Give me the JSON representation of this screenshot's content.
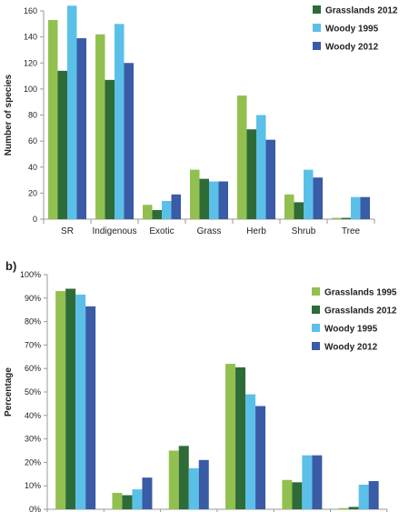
{
  "colors": {
    "grasslands_1995": "#92c050",
    "grasslands_2012": "#2e6b37",
    "woody_1995": "#5bc0e8",
    "woody_2012": "#3a5ba6",
    "axis": "#9a9a9a"
  },
  "chart_data": [
    {
      "type": "bar",
      "panel_label": "",
      "ylabel": "Number of species",
      "ylim": [
        0,
        160
      ],
      "yticks": [
        0,
        20,
        40,
        60,
        80,
        100,
        120,
        140,
        160
      ],
      "tick_labels": [
        "0",
        "20",
        "40",
        "60",
        "80",
        "100",
        "120",
        "140",
        "160"
      ],
      "categories": [
        "SR",
        "Indigenous",
        "Exotic",
        "Grass",
        "Herb",
        "Shrub",
        "Tree"
      ],
      "legend_position": "top-right",
      "legend_entries": [
        "Grasslands 2012",
        "Woody 1995",
        "Woody 2012"
      ],
      "series": [
        {
          "color_key": "grasslands_1995",
          "values": [
            153,
            142,
            11,
            38,
            95,
            19,
            1
          ]
        },
        {
          "name": "Grasslands 2012",
          "color_key": "grasslands_2012",
          "values": [
            114,
            107,
            7,
            31,
            69,
            13,
            1
          ]
        },
        {
          "name": "Woody 1995",
          "color_key": "woody_1995",
          "values": [
            164,
            150,
            14,
            29,
            80,
            38,
            17
          ]
        },
        {
          "name": "Woody 2012",
          "color_key": "woody_2012",
          "values": [
            139,
            120,
            19,
            29,
            61,
            32,
            17
          ]
        }
      ]
    },
    {
      "type": "bar",
      "panel_label": "b)",
      "ylabel": "Percentage",
      "ylim": [
        0,
        100
      ],
      "yticks": [
        0,
        10,
        20,
        30,
        40,
        50,
        60,
        70,
        80,
        90,
        100
      ],
      "tick_labels": [
        "0%",
        "10%",
        "20%",
        "30%",
        "40%",
        "50%",
        "60%",
        "70%",
        "80%",
        "90%",
        "100%"
      ],
      "categories": [
        "",
        "",
        "",
        "",
        "",
        ""
      ],
      "legend_position": "top-right",
      "legend_entries": [
        "Grasslands 1995",
        "Grasslands 2012",
        "Woody 1995",
        "Woody 2012"
      ],
      "series": [
        {
          "name": "Grasslands 1995",
          "color_key": "grasslands_1995",
          "values": [
            93,
            7,
            25,
            62,
            12.5,
            0.5
          ]
        },
        {
          "name": "Grasslands 2012",
          "color_key": "grasslands_2012",
          "values": [
            94,
            6,
            27,
            60.5,
            11.5,
            1
          ]
        },
        {
          "name": "Woody 1995",
          "color_key": "woody_1995",
          "values": [
            91.5,
            8.5,
            17.5,
            49,
            23,
            10.5
          ]
        },
        {
          "name": "Woody 2012",
          "color_key": "woody_2012",
          "values": [
            86.5,
            13.5,
            21,
            44,
            23,
            12
          ]
        }
      ]
    }
  ]
}
